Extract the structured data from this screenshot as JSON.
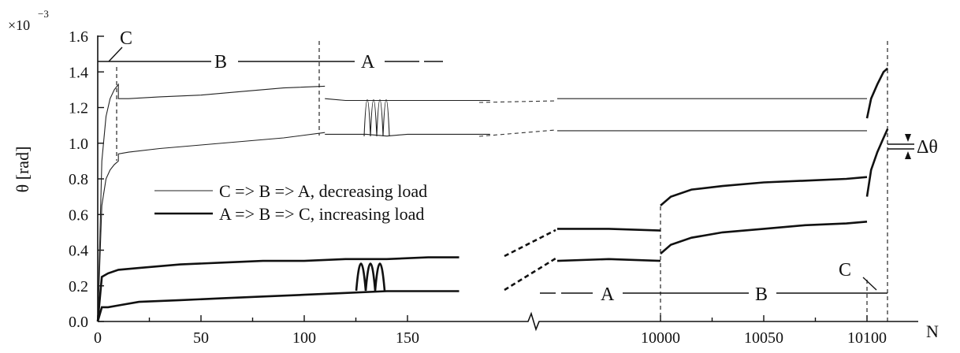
{
  "chart_data": {
    "type": "line",
    "y_multiplier": "×10",
    "y_exponent": "−3",
    "ylabel": "θ [rad]",
    "xlabel": "N",
    "ylim": [
      0,
      1.6
    ],
    "y_ticks": [
      "0.0",
      "0.2",
      "0.4",
      "0.6",
      "0.8",
      "1.0",
      "1.2",
      "1.4",
      "1.6"
    ],
    "x_ticks_left": [
      "0",
      "50",
      "100",
      "150"
    ],
    "x_ticks_right": [
      "10000",
      "10050",
      "10100"
    ],
    "axis_break": true,
    "legend": [
      {
        "label": "C => B => A, decreasing load",
        "style": "thin"
      },
      {
        "label": "A => B => C, increasing load",
        "style": "thick"
      }
    ],
    "regions_top": [
      "C",
      "B",
      "A"
    ],
    "regions_bottom": [
      "A",
      "B",
      "C"
    ],
    "annotation": "Δθ",
    "series": [
      {
        "style": "thin",
        "segment": "left",
        "x": [
          0,
          2,
          4,
          6,
          8,
          10,
          10,
          15,
          30,
          50,
          70,
          90,
          110
        ],
        "y": [
          0.0,
          0.9,
          1.15,
          1.25,
          1.3,
          1.33,
          1.25,
          1.25,
          1.26,
          1.27,
          1.29,
          1.31,
          1.32
        ]
      },
      {
        "style": "thin",
        "segment": "left",
        "x": [
          0,
          2,
          4,
          6,
          8,
          10,
          10,
          15,
          30,
          50,
          70,
          90,
          110
        ],
        "y": [
          0.0,
          0.65,
          0.8,
          0.85,
          0.88,
          0.9,
          0.94,
          0.95,
          0.97,
          0.99,
          1.01,
          1.03,
          1.06
        ]
      },
      {
        "style": "thin",
        "segment": "left",
        "x": [
          110,
          120,
          130,
          140,
          150,
          160,
          170,
          190
        ],
        "y": [
          1.25,
          1.24,
          1.24,
          1.24,
          1.24,
          1.24,
          1.24,
          1.24
        ]
      },
      {
        "style": "thin",
        "segment": "left",
        "x": [
          110,
          120,
          130,
          140,
          150,
          160,
          170,
          190
        ],
        "y": [
          1.05,
          1.05,
          1.05,
          1.04,
          1.05,
          1.05,
          1.05,
          1.05
        ]
      },
      {
        "style": "thin",
        "segment": "right",
        "x": [
          9950,
          9975,
          10000,
          10025,
          10050,
          10075,
          10100
        ],
        "y": [
          1.25,
          1.25,
          1.25,
          1.25,
          1.25,
          1.25,
          1.25
        ]
      },
      {
        "style": "thin",
        "segment": "right",
        "x": [
          9950,
          9975,
          10000,
          10025,
          10050,
          10075,
          10100
        ],
        "y": [
          1.07,
          1.07,
          1.07,
          1.07,
          1.07,
          1.07,
          1.07
        ]
      },
      {
        "style": "thick",
        "segment": "left",
        "x": [
          0,
          2,
          5,
          10,
          20,
          40,
          60,
          80,
          100,
          120,
          140,
          160,
          175
        ],
        "y": [
          0.0,
          0.25,
          0.27,
          0.29,
          0.3,
          0.32,
          0.33,
          0.34,
          0.34,
          0.35,
          0.35,
          0.36,
          0.36
        ]
      },
      {
        "style": "thick",
        "segment": "left",
        "x": [
          0,
          2,
          5,
          10,
          20,
          40,
          60,
          80,
          100,
          120,
          140,
          160,
          175
        ],
        "y": [
          0.0,
          0.08,
          0.08,
          0.09,
          0.11,
          0.12,
          0.13,
          0.14,
          0.15,
          0.16,
          0.17,
          0.17,
          0.17
        ]
      },
      {
        "style": "thick",
        "segment": "right",
        "x": [
          9950,
          9975,
          10000
        ],
        "y": [
          0.52,
          0.52,
          0.51
        ]
      },
      {
        "style": "thick",
        "segment": "right",
        "x": [
          9950,
          9975,
          10000
        ],
        "y": [
          0.34,
          0.35,
          0.34
        ]
      },
      {
        "style": "thick",
        "segment": "right",
        "x": [
          10000,
          10005,
          10015,
          10030,
          10050,
          10070,
          10090,
          10100
        ],
        "y": [
          0.65,
          0.7,
          0.74,
          0.76,
          0.78,
          0.79,
          0.8,
          0.81
        ]
      },
      {
        "style": "thick",
        "segment": "right",
        "x": [
          10000,
          10005,
          10015,
          10030,
          10050,
          10070,
          10090,
          10100
        ],
        "y": [
          0.38,
          0.43,
          0.47,
          0.5,
          0.52,
          0.54,
          0.55,
          0.56
        ]
      },
      {
        "style": "thick",
        "segment": "right",
        "x": [
          10100,
          10102,
          10105,
          10108,
          10110
        ],
        "y": [
          0.7,
          0.85,
          0.95,
          1.03,
          1.08
        ]
      },
      {
        "style": "thick",
        "segment": "right",
        "x": [
          10100,
          10102,
          10105,
          10108,
          10110
        ],
        "y": [
          1.14,
          1.25,
          1.33,
          1.4,
          1.42
        ]
      }
    ]
  }
}
